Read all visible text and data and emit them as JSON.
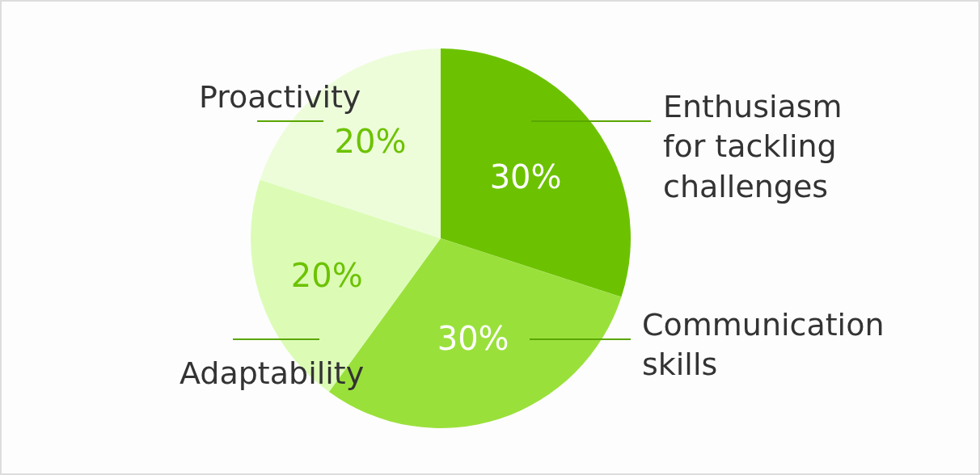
{
  "chart_data": {
    "type": "pie",
    "categories": [
      "Enthusiasm for tackling challenges",
      "Communication skills",
      "Adaptability",
      "Proactivity"
    ],
    "values": [
      30,
      30,
      20,
      20
    ],
    "colors": [
      "#6cc200",
      "#9ae03b",
      "#dcfcb6",
      "#edfdda"
    ],
    "value_labels": [
      "30%",
      "30%",
      "20%",
      "20%"
    ]
  }
}
